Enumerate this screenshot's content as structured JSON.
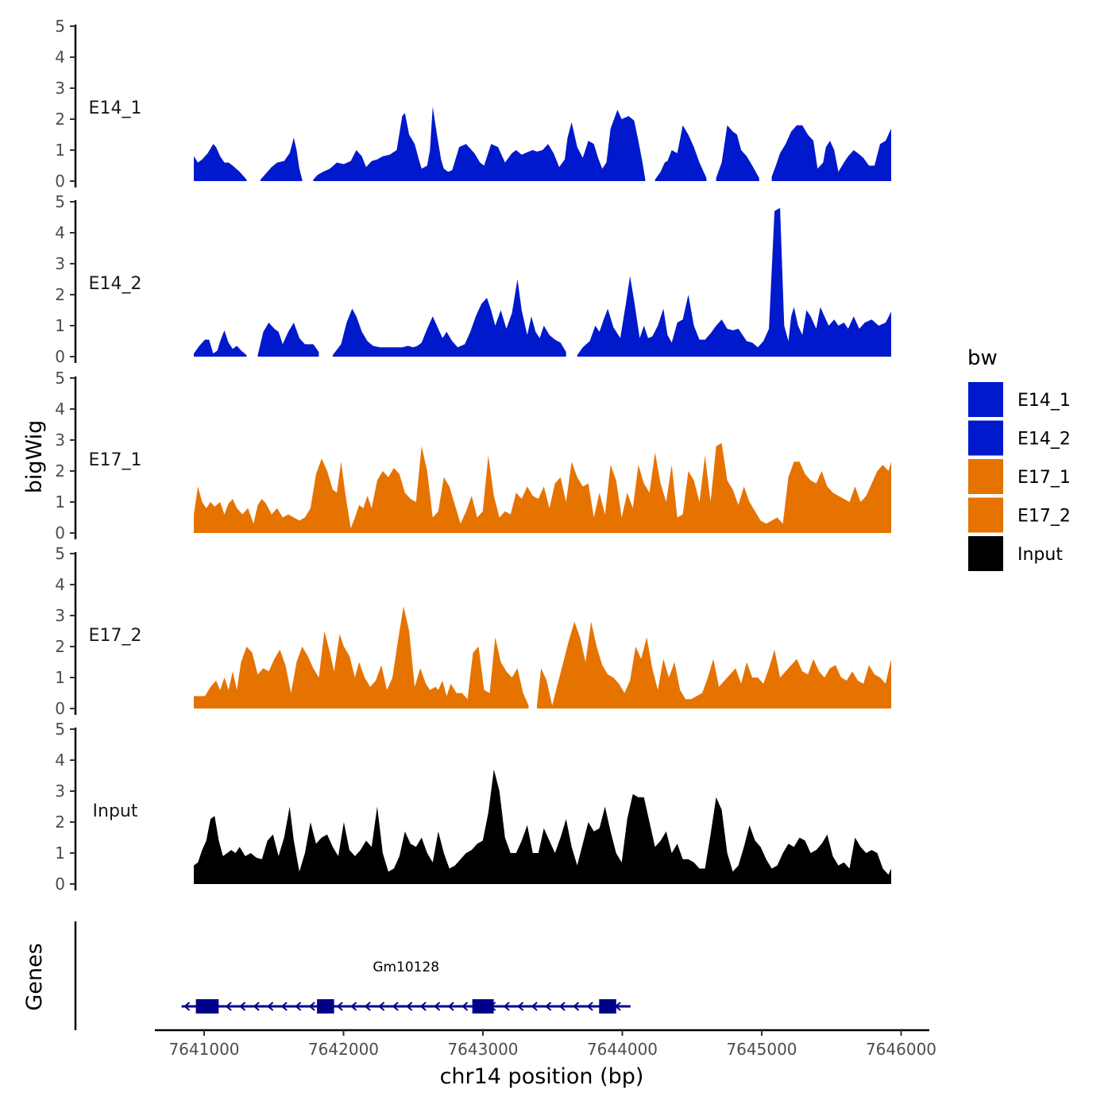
{
  "chart_data": {
    "type": "area",
    "title": "",
    "xlabel": "chr14 position (bp)",
    "ylabel": "bigWig",
    "genes_label": "Genes",
    "xlim": [
      7640650,
      7646150
    ],
    "x_ticks": [
      7641000,
      7642000,
      7643000,
      7644000,
      7645000,
      7646000
    ],
    "x_tick_labels": [
      "7641000",
      "7642000",
      "7643000",
      "7644000",
      "7645000",
      "7646000"
    ],
    "ylim": [
      0,
      5
    ],
    "y_ticks": [
      0,
      1,
      2,
      3,
      4,
      5
    ],
    "y_tick_labels": [
      "0",
      "1",
      "2",
      "3",
      "4",
      "5"
    ],
    "legend": {
      "title": "bw",
      "position": "right",
      "entries": [
        {
          "label": "E14_1",
          "color": "#0019CC"
        },
        {
          "label": "E14_2",
          "color": "#0019CC"
        },
        {
          "label": "E17_1",
          "color": "#E67300"
        },
        {
          "label": "E17_2",
          "color": "#E67300"
        },
        {
          "label": "Input",
          "color": "#000000"
        }
      ]
    },
    "series": [
      {
        "name": "E14_1",
        "color": "#0019CC",
        "x": [
          7640920,
          7640950,
          7640980,
          7641020,
          7641060,
          7641080,
          7641110,
          7641140,
          7641170,
          7641200,
          7641250,
          7641300,
          7641340,
          7641400,
          7641430,
          7641480,
          7641520,
          7641570,
          7641610,
          7641640,
          7641660,
          7641680,
          7641700,
          7641720,
          7641780,
          7641810,
          7641850,
          7641900,
          7641950,
          7642000,
          7642050,
          7642090,
          7642130,
          7642160,
          7642200,
          7642240,
          7642280,
          7642330,
          7642380,
          7642420,
          7642440,
          7642470,
          7642510,
          7642540,
          7642560,
          7642600,
          7642620,
          7642640,
          7642670,
          7642700,
          7642720,
          7642750,
          7642780,
          7642830,
          7642880,
          7642940,
          7642980,
          7643010,
          7643060,
          7643110,
          7643160,
          7643210,
          7643240,
          7643280,
          7643330,
          7643360,
          7643390,
          7643430,
          7643470,
          7643510,
          7643550,
          7643590,
          7643610,
          7643640,
          7643680,
          7643720,
          7643760,
          7643800,
          7643830,
          7643860,
          7643890,
          7643920,
          7643970,
          7644000,
          7644050,
          7644090,
          7644120,
          7644150,
          7644170,
          7644210,
          7644240,
          7644280,
          7644310,
          7644330,
          7644360,
          7644400,
          7644440,
          7644480,
          7644520,
          7644560,
          7644610,
          7644650,
          7644680,
          7644720,
          7644760,
          7644800,
          7644830,
          7644860,
          7644900,
          7644940,
          7644990,
          7645040,
          7645080,
          7645110,
          7645140,
          7645180,
          7645220,
          7645260,
          7645300,
          7645340,
          7645380,
          7645410,
          7645450,
          7645470,
          7645500,
          7645530,
          7645560,
          7645600,
          7645630,
          7645670,
          7645700,
          7645740,
          7645780,
          7645820,
          7645860,
          7645900,
          7645940
        ],
        "values": [
          0.8,
          0.6,
          0.7,
          0.9,
          1.2,
          1.1,
          0.8,
          0.6,
          0.6,
          0.5,
          0.3,
          0.05,
          null,
          0.05,
          0.2,
          0.45,
          0.6,
          0.65,
          0.9,
          1.4,
          1.0,
          0.4,
          0.05,
          null,
          0.05,
          0.2,
          0.3,
          0.4,
          0.6,
          0.55,
          0.65,
          1.0,
          0.8,
          0.45,
          0.65,
          0.7,
          0.8,
          0.85,
          1.0,
          2.1,
          2.2,
          1.5,
          1.2,
          0.7,
          0.4,
          0.5,
          1.0,
          2.4,
          1.5,
          0.7,
          0.4,
          0.3,
          0.35,
          1.1,
          1.2,
          0.9,
          0.6,
          0.5,
          1.2,
          1.1,
          0.6,
          0.9,
          1.0,
          0.85,
          0.95,
          1.0,
          0.95,
          1.0,
          1.2,
          0.9,
          0.45,
          0.7,
          1.4,
          1.9,
          1.1,
          0.75,
          1.3,
          1.2,
          0.75,
          0.4,
          0.6,
          1.7,
          2.3,
          2.0,
          2.1,
          1.95,
          1.3,
          0.6,
          0.05,
          null,
          0.05,
          0.3,
          0.6,
          0.65,
          1.0,
          0.9,
          1.8,
          1.5,
          1.1,
          0.6,
          0.1,
          null,
          0.1,
          0.6,
          1.8,
          1.6,
          1.5,
          1.0,
          0.8,
          0.5,
          0.1,
          null,
          0.15,
          0.5,
          0.9,
          1.2,
          1.6,
          1.8,
          1.8,
          1.5,
          1.3,
          0.4,
          0.6,
          1.1,
          1.3,
          1.0,
          0.3,
          0.6,
          0.8,
          1.0,
          0.9,
          0.75,
          0.5,
          0.5,
          1.2,
          1.3,
          1.7
        ],
        "line_scale_values_note": ""
      }
    ],
    "genes": [
      {
        "name": "Gm10128",
        "start": 7640920,
        "end": 7643970,
        "strand": "-",
        "exons": [
          [
            7641020,
            7641180
          ],
          [
            7641870,
            7641990
          ],
          [
            7642960,
            7643110
          ],
          [
            7643850,
            7643970
          ]
        ]
      }
    ],
    "panels": [
      "E14_1",
      "E14_2",
      "E17_1",
      "E17_2",
      "Input"
    ]
  }
}
